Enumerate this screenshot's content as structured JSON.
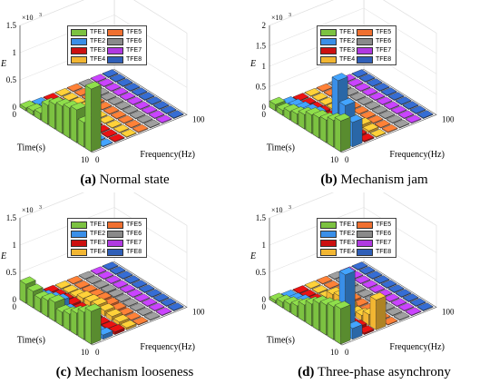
{
  "chart_data": [
    {
      "type": "bar3d",
      "panel_label": "(a)",
      "caption": "Normal state",
      "zlabel": "E",
      "z_multiplier": "×10",
      "z_exponent": "3",
      "zlim": [
        0,
        1.5
      ],
      "zticks": [
        "0",
        "0.5",
        "1",
        "1.5"
      ],
      "time_ticks": [
        "0",
        "10"
      ],
      "freq_ticks": [
        "0",
        "100"
      ],
      "time_label": "Time(s)",
      "freq_label": "Frequency(Hz)",
      "series": [
        {
          "name": "TFE1",
          "values": [
            0.05,
            0.08,
            0.12,
            0.35,
            0.45,
            0.5,
            0.55,
            0.6,
            0.45,
            1.15
          ]
        },
        {
          "name": "TFE2",
          "values": [
            0.02,
            0.05,
            0.1,
            0.18,
            0.12,
            0.04,
            0.03,
            0.02,
            0.01,
            0.0
          ]
        },
        {
          "name": "TFE3",
          "values": [
            0.0,
            0.02,
            0.05,
            0.06,
            0.04,
            0.02,
            0.01,
            0.0,
            0.0,
            0.0
          ]
        },
        {
          "name": "TFE4",
          "values": [
            0.0,
            0.01,
            0.02,
            0.03,
            0.02,
            0.01,
            0.0,
            0.0,
            0.0,
            0.0
          ]
        },
        {
          "name": "TFE5",
          "values": [
            0.0,
            0.0,
            0.01,
            0.02,
            0.01,
            0.0,
            0.0,
            0.0,
            0.0,
            0.0
          ]
        },
        {
          "name": "TFE6",
          "values": [
            0.0,
            0.0,
            0.0,
            0.01,
            0.0,
            0.0,
            0.0,
            0.0,
            0.0,
            0.0
          ]
        },
        {
          "name": "TFE7",
          "values": [
            0.0,
            0.0,
            0.0,
            0.0,
            0.0,
            0.0,
            0.0,
            0.0,
            0.0,
            0.0
          ]
        },
        {
          "name": "TFE8",
          "values": [
            0.0,
            0.0,
            0.0,
            0.0,
            0.0,
            0.0,
            0.0,
            0.0,
            0.0,
            0.0
          ]
        }
      ]
    },
    {
      "type": "bar3d",
      "panel_label": "(b)",
      "caption": "Mechanism jam",
      "zlabel": "E",
      "z_multiplier": "×10",
      "z_exponent": "3",
      "zlim": [
        0,
        2
      ],
      "zticks": [
        "0",
        "0.5",
        "1",
        "1.5",
        "2"
      ],
      "time_ticks": [
        "0",
        "10"
      ],
      "freq_ticks": [
        "0",
        "100"
      ],
      "time_label": "Time(s)",
      "freq_label": "Frequency(Hz)",
      "series": [
        {
          "name": "TFE1",
          "values": [
            0.15,
            0.12,
            0.2,
            0.25,
            0.35,
            0.45,
            0.5,
            0.55,
            0.65,
            0.75
          ]
        },
        {
          "name": "TFE2",
          "values": [
            0.05,
            0.1,
            0.15,
            0.2,
            0.25,
            0.1,
            0.15,
            1.4,
            0.9,
            0.6
          ]
        },
        {
          "name": "TFE3",
          "values": [
            0.0,
            0.02,
            0.03,
            0.05,
            0.04,
            0.03,
            0.02,
            0.05,
            0.04,
            0.03
          ]
        },
        {
          "name": "TFE4",
          "values": [
            0.0,
            0.01,
            0.02,
            0.03,
            0.02,
            0.02,
            0.01,
            0.08,
            0.05,
            0.02
          ]
        },
        {
          "name": "TFE5",
          "values": [
            0.0,
            0.0,
            0.01,
            0.02,
            0.01,
            0.0,
            0.0,
            0.02,
            0.01,
            0.0
          ]
        },
        {
          "name": "TFE6",
          "values": [
            0.0,
            0.0,
            0.0,
            0.01,
            0.0,
            0.0,
            0.0,
            0.01,
            0.0,
            0.0
          ]
        },
        {
          "name": "TFE7",
          "values": [
            0.0,
            0.0,
            0.0,
            0.0,
            0.0,
            0.0,
            0.0,
            0.0,
            0.0,
            0.0
          ]
        },
        {
          "name": "TFE8",
          "values": [
            0.0,
            0.0,
            0.0,
            0.0,
            0.0,
            0.0,
            0.0,
            0.0,
            0.0,
            0.0
          ]
        }
      ]
    },
    {
      "type": "bar3d",
      "panel_label": "(c)",
      "caption": "Mechanism looseness",
      "zlabel": "E",
      "z_multiplier": "×10",
      "z_exponent": "3",
      "zlim": [
        0,
        1.5
      ],
      "zticks": [
        "0",
        "0.5",
        "1",
        "1.5"
      ],
      "time_ticks": [
        "0",
        "10"
      ],
      "freq_ticks": [
        "0",
        "100"
      ],
      "time_label": "Time(s)",
      "freq_label": "Frequency(Hz)",
      "series": [
        {
          "name": "TFE1",
          "values": [
            0.35,
            0.3,
            0.25,
            0.3,
            0.35,
            0.25,
            0.3,
            0.4,
            0.5,
            0.6
          ]
        },
        {
          "name": "TFE2",
          "values": [
            0.05,
            0.1,
            0.15,
            0.2,
            0.1,
            0.05,
            0.04,
            0.03,
            0.05,
            0.08
          ]
        },
        {
          "name": "TFE3",
          "values": [
            0.02,
            0.03,
            0.04,
            0.05,
            0.04,
            0.03,
            0.02,
            0.02,
            0.03,
            0.05
          ]
        },
        {
          "name": "TFE4",
          "values": [
            0.01,
            0.02,
            0.03,
            0.08,
            0.1,
            0.12,
            0.1,
            0.08,
            0.06,
            0.04
          ]
        },
        {
          "name": "TFE5",
          "values": [
            0.0,
            0.01,
            0.02,
            0.03,
            0.05,
            0.04,
            0.03,
            0.02,
            0.01,
            0.0
          ]
        },
        {
          "name": "TFE6",
          "values": [
            0.0,
            0.0,
            0.01,
            0.02,
            0.02,
            0.01,
            0.0,
            0.0,
            0.0,
            0.0
          ]
        },
        {
          "name": "TFE7",
          "values": [
            0.0,
            0.0,
            0.0,
            0.0,
            0.0,
            0.0,
            0.0,
            0.0,
            0.0,
            0.0
          ]
        },
        {
          "name": "TFE8",
          "values": [
            0.0,
            0.0,
            0.0,
            0.0,
            0.0,
            0.0,
            0.0,
            0.0,
            0.0,
            0.0
          ]
        }
      ]
    },
    {
      "type": "bar3d",
      "panel_label": "(d)",
      "caption": "Three-phase asynchrony",
      "zlabel": "E",
      "z_multiplier": "×10",
      "z_exponent": "3",
      "zlim": [
        0,
        1.5
      ],
      "zticks": [
        "0",
        "0.5",
        "1",
        "1.5"
      ],
      "time_ticks": [
        "0",
        "10"
      ],
      "freq_ticks": [
        "0",
        "100"
      ],
      "time_label": "Time(s)",
      "freq_label": "Frequency(Hz)",
      "series": [
        {
          "name": "TFE1",
          "values": [
            0.05,
            0.1,
            0.15,
            0.2,
            0.3,
            0.4,
            0.5,
            0.55,
            0.6,
            0.65
          ]
        },
        {
          "name": "TFE2",
          "values": [
            0.02,
            0.05,
            0.1,
            0.08,
            0.05,
            0.04,
            0.03,
            0.05,
            1.1,
            0.2
          ]
        },
        {
          "name": "TFE3",
          "values": [
            0.0,
            0.02,
            0.03,
            0.05,
            0.04,
            0.03,
            0.02,
            0.02,
            0.05,
            0.03
          ]
        },
        {
          "name": "TFE4",
          "values": [
            0.0,
            0.01,
            0.02,
            0.15,
            0.2,
            0.1,
            0.05,
            0.1,
            0.2,
            0.55
          ]
        },
        {
          "name": "TFE5",
          "values": [
            0.0,
            0.0,
            0.01,
            0.02,
            0.03,
            0.02,
            0.01,
            0.0,
            0.0,
            0.0
          ]
        },
        {
          "name": "TFE6",
          "values": [
            0.0,
            0.0,
            0.0,
            0.01,
            0.0,
            0.0,
            0.0,
            0.0,
            0.0,
            0.0
          ]
        },
        {
          "name": "TFE7",
          "values": [
            0.0,
            0.0,
            0.0,
            0.0,
            0.0,
            0.0,
            0.0,
            0.0,
            0.0,
            0.0
          ]
        },
        {
          "name": "TFE8",
          "values": [
            0.0,
            0.0,
            0.0,
            0.0,
            0.0,
            0.0,
            0.0,
            0.0,
            0.0,
            0.0
          ]
        }
      ]
    }
  ],
  "colors": {
    "TFE1": "#7cc241",
    "TFE2": "#3a8fe8",
    "TFE3": "#cc1010",
    "TFE4": "#f2b632",
    "TFE5": "#f07030",
    "TFE6": "#8a8a8a",
    "TFE7": "#b03ae0",
    "TFE8": "#2f5fb8"
  }
}
